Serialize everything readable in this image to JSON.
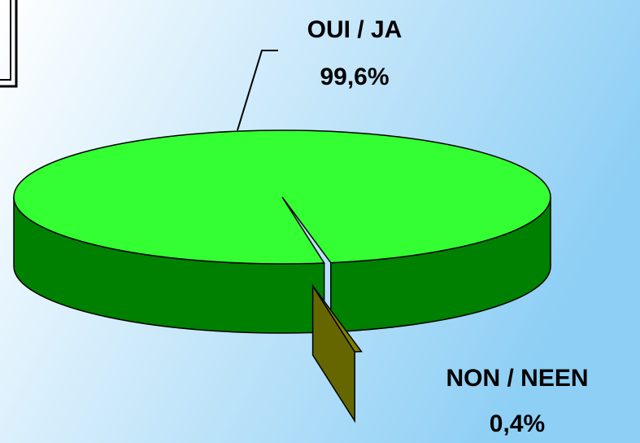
{
  "chart_data": {
    "type": "pie",
    "categories": [
      "OUI / JA",
      "NON / NEEN"
    ],
    "values": [
      99.6,
      0.4
    ],
    "value_labels": [
      "99,6%",
      "0,4%"
    ],
    "colors": [
      "#33ff33",
      "#808000"
    ]
  }
}
